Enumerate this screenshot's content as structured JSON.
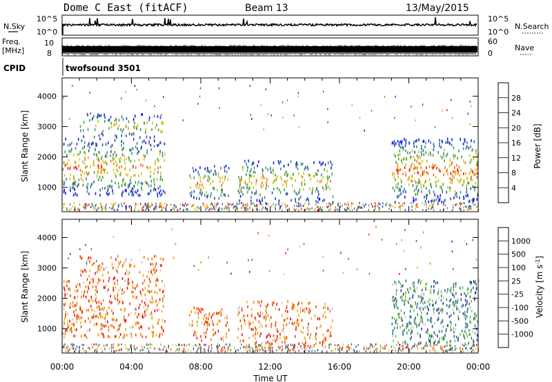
{
  "header": {
    "title": "Dome C East (fitACF)",
    "beam": "Beam 13",
    "date": "13/May/2015"
  },
  "top_panels": {
    "nsky_label": "N.Sky",
    "nsky_ticks": [
      "10^5",
      "10^0"
    ],
    "nsearch_label": "N.Search",
    "nsearch_ticks": [
      "10^5",
      "10^0"
    ],
    "freq_label_1": "Freq.",
    "freq_label_2": "[MHz]",
    "freq_ticks": [
      "10",
      "8"
    ],
    "nave_label": "Nave",
    "nave_ticks": [
      "60",
      "0"
    ],
    "cpid_label": "CPID",
    "cpid_text": "twofsound 3501"
  },
  "chart_data": [
    {
      "type": "heatmap",
      "name": "power",
      "ylabel": "Slant Range [km]",
      "yticks": [
        1000,
        2000,
        3000,
        4000
      ],
      "ylim": [
        200,
        4600
      ],
      "xlim": [
        0,
        24
      ],
      "colorbar_label": "Power [dB]",
      "colorbar_ticks": [
        4,
        8,
        12,
        16,
        20,
        24,
        28
      ],
      "colorbar_colors": [
        "#1a1ae6",
        "#2a4fb0",
        "#3f8a8a",
        "#48a048",
        "#b8c820",
        "#f0b020",
        "#f07010",
        "#e82010"
      ],
      "scatter_clusters": [
        {
          "t0": 0.0,
          "t1": 5.9,
          "r0": 700,
          "r1": 2600,
          "intensity": 0.8
        },
        {
          "t0": 1.0,
          "t1": 5.8,
          "r0": 2600,
          "r1": 3400,
          "intensity": 0.6
        },
        {
          "t0": 7.3,
          "t1": 9.6,
          "r0": 600,
          "r1": 1700,
          "intensity": 0.8
        },
        {
          "t0": 10.1,
          "t1": 15.6,
          "r0": 500,
          "r1": 1900,
          "intensity": 0.7
        },
        {
          "t0": 19.0,
          "t1": 24.0,
          "r0": 500,
          "r1": 2600,
          "intensity": 0.9
        }
      ]
    },
    {
      "type": "heatmap",
      "name": "velocity",
      "ylabel": "Slant Range [km]",
      "xlabel": "Time UT",
      "yticks": [
        1000,
        2000,
        3000,
        4000
      ],
      "ylim": [
        200,
        4600
      ],
      "xlim": [
        0,
        24
      ],
      "xtick_labels": [
        "00:00",
        "04:00",
        "08:00",
        "12:00",
        "16:00",
        "20:00",
        "00:00"
      ],
      "colorbar_label": "Velocity [m s^-1]",
      "colorbar_ticks": [
        "1000",
        "500",
        "100",
        "25",
        "-25",
        "-100",
        "-500",
        "-1000"
      ],
      "colorbar_colors": [
        "#2438b0",
        "#2e6ea0",
        "#3a8a58",
        "#7ac040",
        "#c8c8c8",
        "#f0b020",
        "#f08010",
        "#f04010",
        "#e81010"
      ],
      "scatter_clusters": [
        {
          "t0": 0.0,
          "t1": 5.9,
          "r0": 700,
          "r1": 2600,
          "intensity": 0.8
        },
        {
          "t0": 1.0,
          "t1": 5.8,
          "r0": 2600,
          "r1": 3400,
          "intensity": 0.6
        },
        {
          "t0": 7.3,
          "t1": 9.6,
          "r0": 600,
          "r1": 1700,
          "intensity": 0.8
        },
        {
          "t0": 10.1,
          "t1": 15.6,
          "r0": 500,
          "r1": 1900,
          "intensity": 0.7
        },
        {
          "t0": 19.0,
          "t1": 24.0,
          "r0": 500,
          "r1": 2600,
          "intensity": 0.9
        }
      ]
    }
  ]
}
